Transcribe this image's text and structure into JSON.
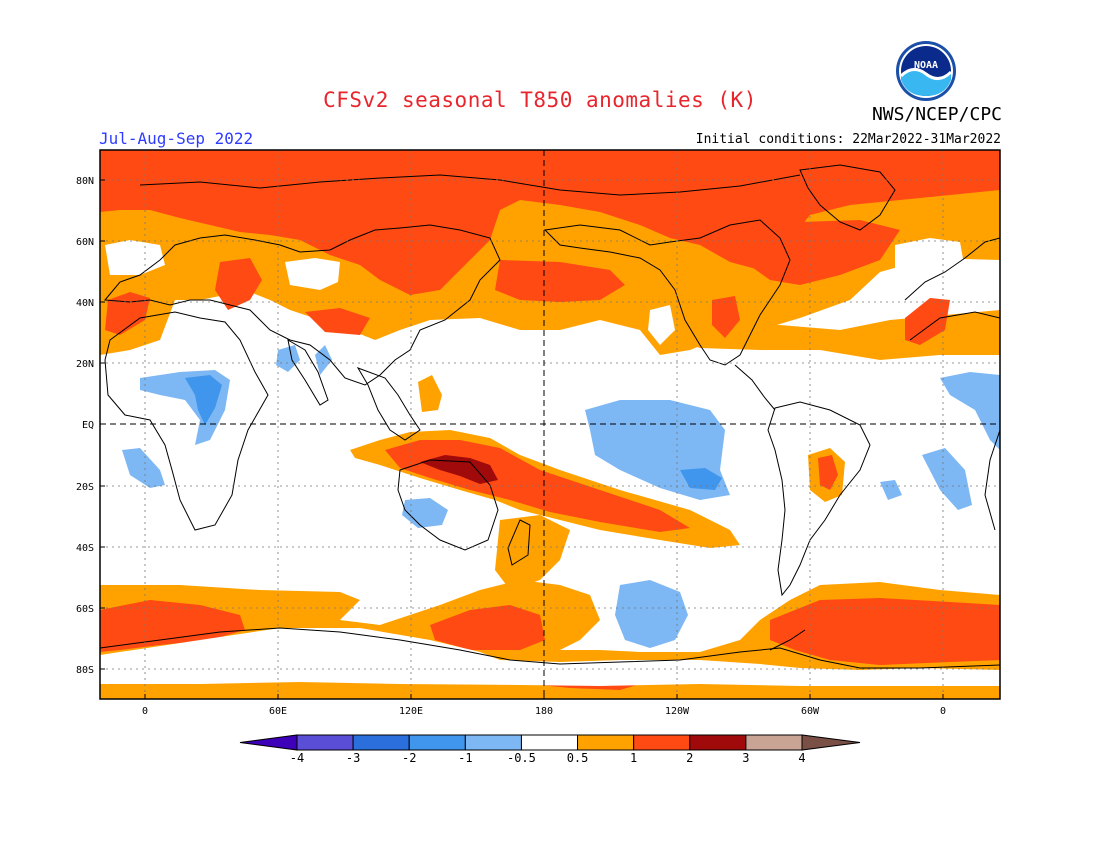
{
  "header": {
    "title": "CFSv2 seasonal T850 anomalies (K)",
    "agency": "NWS/NCEP/CPC",
    "season": "Jul-Aug-Sep 2022",
    "initial_conditions": "Initial conditions: 22Mar2022-31Mar2022",
    "logo_text": "NOAA"
  },
  "map": {
    "lat_labels": [
      "80N",
      "60N",
      "40N",
      "20N",
      "EQ",
      "20S",
      "40S",
      "60S",
      "80S"
    ],
    "lon_labels": [
      "0",
      "60E",
      "120E",
      "180",
      "120W",
      "60W",
      "0"
    ],
    "gridlines": "dotted",
    "equator_line": "dashed",
    "dateline": "dashed"
  },
  "colorbar": {
    "labels": [
      "-4",
      "-3",
      "-2",
      "-1",
      "-0.5",
      "0.5",
      "1",
      "2",
      "3",
      "4"
    ],
    "colors": [
      "#3d00b8",
      "#5a4dd6",
      "#2a6fdc",
      "#3f96ec",
      "#7db7f4",
      "#ffffff",
      "#ffa200",
      "#ff4a14",
      "#a00a0a",
      "#c9a394",
      "#7a4f45"
    ]
  },
  "colors": {
    "title": "#e8252c",
    "season": "#2e3cff",
    "warm_1": "#ffa200",
    "warm_2": "#ff4a14",
    "warm_3": "#a00a0a",
    "cool_1": "#7db7f4",
    "cool_2": "#3f96ec"
  }
}
